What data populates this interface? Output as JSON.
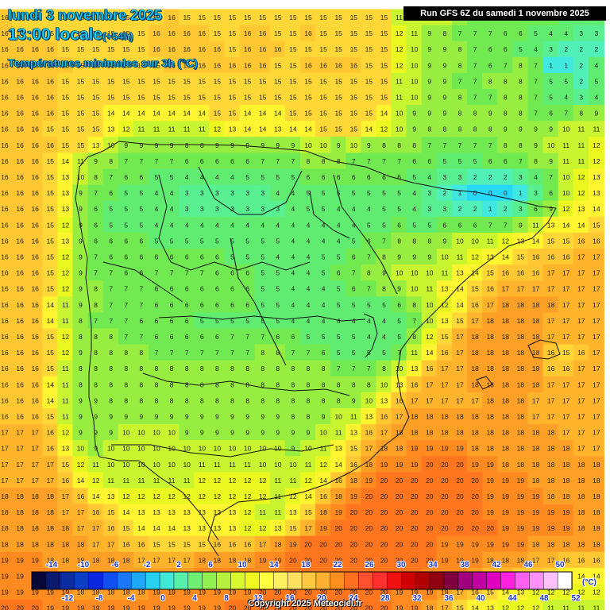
{
  "title": {
    "date": "lundi 3 novembre 2025",
    "time": "13:00 locale",
    "lead": "(+54h)",
    "subtitle": "Températures minimales sur 3h (°C)"
  },
  "run_label": "Run GFS 6Z du samedi 1 novembre 2025",
  "copyright": "Copyright 2025 Meteociel.fr",
  "legend": {
    "unit": "(°C)",
    "top_labels": [
      "-14",
      "-10",
      "-6",
      "-2",
      "2",
      "6",
      "10",
      "14",
      "18",
      "22",
      "26",
      "30",
      "34",
      "38",
      "42",
      "46",
      "50"
    ],
    "bottom_labels": [
      "-12",
      "-8",
      "-4",
      "0",
      "4",
      "8",
      "12",
      "16",
      "20",
      "24",
      "28",
      "32",
      "36",
      "40",
      "44",
      "48",
      "52"
    ],
    "colors": [
      "#080838",
      "#0a1a6e",
      "#0a2ea0",
      "#0b3fc8",
      "#0a28e0",
      "#1050f0",
      "#1a78f8",
      "#20a8f8",
      "#28d0f0",
      "#40e8d8",
      "#58f0a8",
      "#70f070",
      "#90f050",
      "#b8f040",
      "#d8f830",
      "#f0f820",
      "#ffff40",
      "#fff060",
      "#ffe060",
      "#ffc840",
      "#ffb030",
      "#ff9020",
      "#ff7020",
      "#ff5030",
      "#ff3030",
      "#f01010",
      "#d00000",
      "#b00000",
      "#900010",
      "#800040",
      "#a00080",
      "#c000a0",
      "#e000c0",
      "#ff20e0",
      "#ff60f0",
      "#ff90f8",
      "#ffc0fc",
      "#ffffff"
    ]
  },
  "grid": {
    "rows": [
      "16 15 15 15 15 15 15 15 15 15 15 16 15 15 15 15 15 15 15 15 15 15 15 15 15 15 11 11 11 10 8 7 7 7 6 6 6 5 4 4",
      "16 15 15 15 15 15 15 15 15 15 16 16 16 16 15 15 16 16 15 15 16 15 15 15 15 15 12 11 9 8 7 7 7 6 6 5 4 4 3 3",
      "16 16 16 16 15 15 15 15 15 15 16 16 16 16 16 15 16 16 16 15 15 15 15 15 15 15 12 10 9 9 8 7 6 6 5 4 3 2 2 2",
      "16 16 16 16 16 15 15 15 15 15 15 16 16 16 16 16 16 16 15 15 16 16 16 16 15 15 12 10 9 9 8 7 6 7 8 7 1 1 2 4",
      "16 16 16 16 15 15 15 15 15 15 15 15 15 15 15 15 15 15 15 15 15 15 15 15 15 15 11 10 9 9 7 7 8 8 8 7 5 5 2 5",
      "16 16 16 16 15 15 15 15 15 15 15 15 15 15 15 15 15 15 15 15 15 15 15 15 15 15 11 10 9 9 8 7 7 8 8 7 5 4 3 4",
      "16 16 16 16 15 15 15 14 14 14 14 14 14 14 15 15 14 14 14 15 15 15 15 15 15 14 10 9 9 9 8 8 9 8 8 7 6 7 8 9",
      "16 16 16 15 15 15 15 13 12 11 11 11 11 11 12 13 14 14 13 14 14 15 15 15 14 12 10 9 8 8 8 8 8 9 9 9 9 10 11 11",
      "16 16 16 16 15 15 13 10 9 9 9 9 8 8 9 9 9 9 9 9 10 10 9 10 9 8 8 8 7 7 7 7 7 8 8 9 10 11 11 12",
      "16 16 16 15 14 11 9 8 7 7 7 7 6 6 6 6 6 7 7 7 8 8 8 7 7 7 7 6 6 5 5 5 6 6 7 8 9 11 11 12",
      "16 16 16 15 13 10 8 7 6 6 5 5 4 4 4 4 5 5 5 5 6 6 6 6 6 6 6 5 4 3 3 2 2 2 3 4 7 10 12 13",
      "16 16 16 15 13 9 7 6 5 5 4 4 3 3 3 3 3 3 4 4 5 5 5 5 5 5 5 4 3 2 1 0 0 0 1 3 6 10 12 13",
      "16 16 16 15 13 9 6 5 5 5 4 4 3 3 3 3 3 3 3 4 5 5 4 4 4 5 5 4 3 3 2 2 1 2 3 6 9 12 13 14",
      "16 16 16 15 12 9 6 5 5 5 4 4 4 4 4 4 4 4 4 4 4 4 4 4 5 5 6 5 5 6 6 6 7 7 9 11 13 14 14 15",
      "16 16 16 15 13 9 6 6 6 6 5 5 5 5 5 5 5 5 5 4 4 4 4 5 6 7 8 8 8 9 10 10 11 12 13 14 15 15 16 16",
      "16 16 16 15 12 9 7 6 6 6 6 6 6 6 6 5 5 5 4 4 4 5 5 6 7 8 9 9 9 10 11 12 13 14 15 16 16 16 17 17",
      "16 16 16 15 12 9 7 7 6 6 7 7 7 7 6 6 6 5 5 4 4 5 6 7 8 9 10 10 10 11 13 14 15 16 16 16 17 17 17 17",
      "16 16 16 15 12 9 8 7 7 7 6 6 6 6 6 6 6 5 5 4 4 4 5 6 7 8 9 10 11 13 14 15 16 17 17 17 17 17 17 17",
      "16 16 16 14 11 9 8 7 7 7 6 6 6 6 6 6 6 5 5 4 4 4 5 5 5 5 6 8 10 12 14 16 17 18 18 18 18 17 17 17",
      "16 16 16 14 11 8 7 7 7 6 6 6 6 5 5 5 5 5 5 4 4 4 4 4 4 4 5 7 10 13 15 17 18 18 18 18 17 17 17 17",
      "16 16 16 15 12 8 8 8 7 7 6 6 6 6 6 7 7 7 6 6 5 5 5 5 4 4 5 8 12 15 17 18 18 18 18 18 17 17 17 17",
      "16 16 16 15 12 9 8 8 8 8 7 7 7 7 7 7 7 8 8 7 7 6 5 5 5 5 7 11 14 16 17 18 18 18 18 18 16 15 16 17",
      "16 16 16 15 11 8 8 8 8 8 8 8 8 8 8 8 8 8 8 8 8 8 7 7 7 8 10 13 16 17 17 18 18 18 18 18 16 16 17 17",
      "16 16 16 14 11 8 8 8 8 8 8 8 8 8 8 8 8 8 8 8 8 8 8 8 8 10 13 16 17 17 17 18 18 18 18 18 17 17 17 17",
      "16 16 16 14 11 9 9 8 8 8 8 8 8 8 8 8 8 8 8 8 8 8 8 9 10 13 16 17 17 17 17 17 18 18 18 17 17 17 17 17",
      "16 16 16 15 11 9 9 9 9 9 9 9 9 9 9 9 9 9 9 8 8 9 10 11 13 16 17 18 18 18 18 18 18 18 18 17 17 17 17 17",
      "17 17 17 16 12 9 9 9 10 10 10 10 9 9 9 9 9 9 9 9 9 10 11 13 16 17 18 18 18 18 18 18 18 18 18 18 18 17 17 17",
      "17 17 17 16 13 10 9 10 10 10 10 10 10 10 10 10 10 10 10 9 10 11 13 15 17 18 18 19 19 19 19 18 18 18 18 18 18 18 17 17",
      "17 17 17 17 15 12 11 10 10 10 10 10 10 11 11 11 11 10 10 10 11 12 14 16 18 19 19 19 20 20 20 19 19 18 18 18 18 18 18 18",
      "17 17 17 17 16 14 12 11 11 11 11 11 11 12 12 12 12 12 11 11 12 14 16 18 19 20 20 20 20 20 20 20 19 19 19 18 18 18 18 18",
      "18 18 18 18 17 16 14 13 12 12 12 12 12 12 12 12 12 12 11 12 14 16 18 19 20 20 20 20 20 20 20 20 19 19 19 19 18 18 18 18",
      "18 18 18 18 17 17 16 15 14 13 13 13 13 13 13 13 12 11 11 13 15 18 19 20 20 20 20 20 20 20 20 20 19 19 19 19 19 19 18 18",
      "18 18 18 18 18 17 17 16 15 14 14 14 13 13 13 13 12 12 13 15 17 19 20 20 20 20 20 20 20 20 20 20 20 19 19 19 19 19 18 18",
      "18 18 18 18 18 18 17 17 16 16 15 15 15 15 16 16 16 17 18 19 20 20 20 20 20 20 20 20 20 19 19 19 19 19 19 18 18 18 18 18",
      "19 19 19 18 18 18 18 18 18 17 17 17 17 18 18 18 18 19 19 20 20 20 20 20 20 20 20 20 20 19 19 19 18 18 18 17 17 16 16 16",
      "19 19 19 19 18 18 18 18 18 18 18 18 18 19 19 19 19 19 19 20 20 20 20 20 20 20 20 20 19 19 19 18 17 17 16 16 15 14 14 14",
      "19 19 19 19 19 18 18 18 18 18 19 19 19 19 19 19 19 20 20 20 20 20 20 20 20 20 19 19 19 18 17 16 15 14 13 12 12 12 12 12",
      "20 20 20 19 19 19 19 19 19 19 19 19 19 19 19 20 20 20 20 20 20 20 20 20 20 20 19 19 18 17 15 14 13 12 12 12 11 11 11 11"
    ]
  }
}
